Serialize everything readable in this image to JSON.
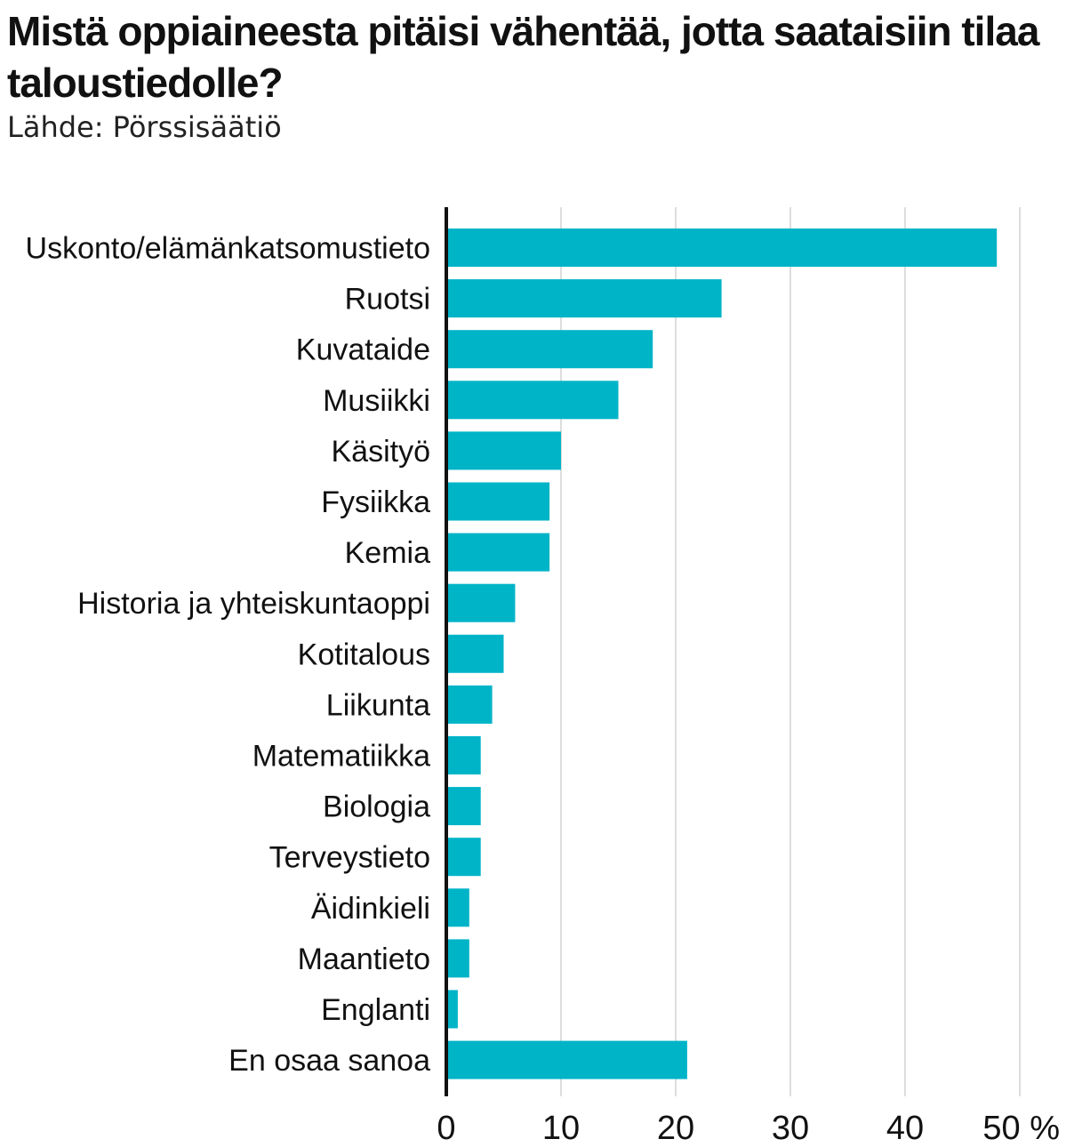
{
  "title": "Mistä oppiaineesta pitäisi vähentää, jotta saataisiin tilaa taloustiedolle?",
  "subtitle": "Lähde: Pörssisäätiö",
  "colors": {
    "bar": "#00b4c8",
    "grid": "#dddddd",
    "axis": "#111111"
  },
  "chart_data": {
    "type": "bar",
    "orientation": "horizontal",
    "title": "Mistä oppiaineesta pitäisi vähentää, jotta saataisiin tilaa taloustiedolle?",
    "categories": [
      "Uskonto/elämänkatsomustieto",
      "Ruotsi",
      "Kuvataide",
      "Musiikki",
      "Käsityö",
      "Fysiikka",
      "Kemia",
      "Historia ja yhteiskuntaoppi",
      "Kotitalous",
      "Liikunta",
      "Matematiikka",
      "Biologia",
      "Terveystieto",
      "Äidinkieli",
      "Maantieto",
      "Englanti",
      "En osaa sanoa"
    ],
    "values": [
      48,
      24,
      18,
      15,
      10,
      9,
      9,
      6,
      5,
      4,
      3,
      3,
      3,
      2,
      2,
      1,
      21
    ],
    "xlim": [
      0,
      50
    ],
    "xticks": [
      0,
      10,
      20,
      30,
      40,
      50
    ],
    "xtick_labels": [
      "0",
      "10",
      "20",
      "30",
      "40",
      "50 %"
    ],
    "grid": true,
    "legend": "none"
  }
}
